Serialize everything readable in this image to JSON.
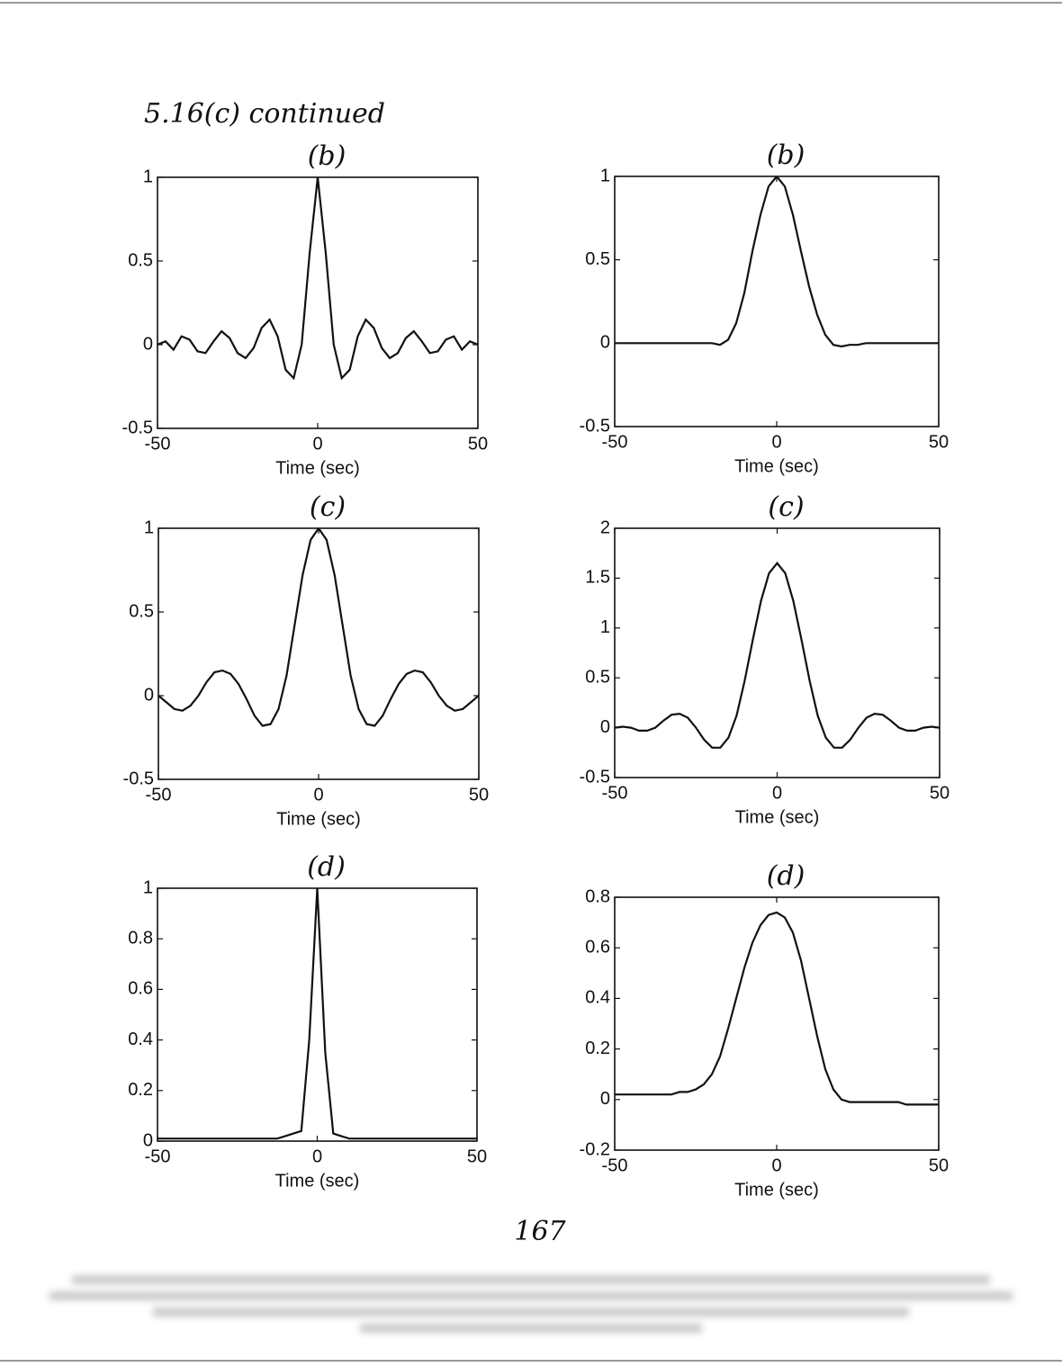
{
  "header": "5.16(c) continued",
  "page_number": "167",
  "chart_data": [
    {
      "type": "line",
      "title": "(b)",
      "xlabel": "Time (sec)",
      "color": "#111111",
      "xlim": [
        -50,
        50
      ],
      "xticks": [
        -50,
        0,
        50
      ],
      "ylim": [
        -0.5,
        1
      ],
      "yticks": [
        -0.5,
        0,
        0.5,
        1
      ],
      "x": [
        -50,
        -47.5,
        -45,
        -42.5,
        -40,
        -37.5,
        -35,
        -32.5,
        -30,
        -27.5,
        -25,
        -22.5,
        -20,
        -17.5,
        -15,
        -12.5,
        -10,
        -7.5,
        -5,
        -2.5,
        0,
        2.5,
        5,
        7.5,
        10,
        12.5,
        15,
        17.5,
        20,
        22.5,
        25,
        27.5,
        30,
        32.5,
        35,
        37.5,
        40,
        42.5,
        45,
        47.5,
        50
      ],
      "y": [
        0,
        0.02,
        -0.03,
        0.05,
        0.03,
        -0.04,
        -0.05,
        0.02,
        0.08,
        0.04,
        -0.05,
        -0.08,
        -0.02,
        0.1,
        0.15,
        0.05,
        -0.15,
        -0.2,
        0,
        0.55,
        1,
        0.55,
        0,
        -0.2,
        -0.15,
        0.05,
        0.15,
        0.1,
        -0.02,
        -0.08,
        -0.05,
        0.04,
        0.08,
        0.02,
        -0.05,
        -0.04,
        0.03,
        0.05,
        -0.03,
        0.02,
        0
      ]
    },
    {
      "type": "line",
      "title": "(b)",
      "xlabel": "Time (sec)",
      "color": "#111111",
      "xlim": [
        -50,
        50
      ],
      "xticks": [
        -50,
        0,
        50
      ],
      "ylim": [
        -0.5,
        1
      ],
      "yticks": [
        -0.5,
        0,
        0.5,
        1
      ],
      "x": [
        -50,
        -47.5,
        -45,
        -42.5,
        -40,
        -37.5,
        -35,
        -32.5,
        -30,
        -27.5,
        -25,
        -22.5,
        -20,
        -17.5,
        -15,
        -12.5,
        -10,
        -7.5,
        -5,
        -2.5,
        0,
        2.5,
        5,
        7.5,
        10,
        12.5,
        15,
        17.5,
        20,
        22.5,
        25,
        27.5,
        30,
        32.5,
        35,
        37.5,
        40,
        42.5,
        45,
        47.5,
        50
      ],
      "y": [
        0,
        0,
        0,
        0,
        0,
        0,
        0,
        0,
        0,
        0,
        0,
        0,
        0,
        -0.01,
        0.02,
        0.12,
        0.3,
        0.55,
        0.77,
        0.94,
        1,
        0.94,
        0.77,
        0.55,
        0.34,
        0.17,
        0.05,
        -0.01,
        -0.02,
        -0.01,
        -0.01,
        0,
        0,
        0,
        0,
        0,
        0,
        0,
        0,
        0,
        0
      ]
    },
    {
      "type": "line",
      "title": "(c)",
      "xlabel": "Time (sec)",
      "color": "#111111",
      "xlim": [
        -50,
        50
      ],
      "xticks": [
        -50,
        0,
        50
      ],
      "ylim": [
        -0.5,
        1
      ],
      "yticks": [
        -0.5,
        0,
        0.5,
        1
      ],
      "x": [
        -50,
        -47.5,
        -45,
        -42.5,
        -40,
        -37.5,
        -35,
        -32.5,
        -30,
        -27.5,
        -25,
        -22.5,
        -20,
        -17.5,
        -15,
        -12.5,
        -10,
        -7.5,
        -5,
        -2.5,
        0,
        2.5,
        5,
        7.5,
        10,
        12.5,
        15,
        17.5,
        20,
        22.5,
        25,
        27.5,
        30,
        32.5,
        35,
        37.5,
        40,
        42.5,
        45,
        47.5,
        50
      ],
      "y": [
        0,
        -0.04,
        -0.08,
        -0.09,
        -0.06,
        0,
        0.08,
        0.14,
        0.15,
        0.13,
        0.07,
        -0.02,
        -0.12,
        -0.18,
        -0.17,
        -0.08,
        0.12,
        0.42,
        0.72,
        0.93,
        1,
        0.93,
        0.72,
        0.42,
        0.12,
        -0.08,
        -0.17,
        -0.18,
        -0.12,
        -0.02,
        0.07,
        0.13,
        0.15,
        0.14,
        0.08,
        0,
        -0.06,
        -0.09,
        -0.08,
        -0.04,
        0
      ]
    },
    {
      "type": "line",
      "title": "(c)",
      "xlabel": "Time (sec)",
      "color": "#111111",
      "xlim": [
        -50,
        50
      ],
      "xticks": [
        -50,
        0,
        50
      ],
      "ylim": [
        -0.5,
        2
      ],
      "yticks": [
        -0.5,
        0,
        0.5,
        1,
        1.5,
        2
      ],
      "x": [
        -50,
        -47.5,
        -45,
        -42.5,
        -40,
        -37.5,
        -35,
        -32.5,
        -30,
        -27.5,
        -25,
        -22.5,
        -20,
        -17.5,
        -15,
        -12.5,
        -10,
        -7.5,
        -5,
        -2.5,
        0,
        2.5,
        5,
        7.5,
        10,
        12.5,
        15,
        17.5,
        20,
        22.5,
        25,
        27.5,
        30,
        32.5,
        35,
        37.5,
        40,
        42.5,
        45,
        47.5,
        50
      ],
      "y": [
        0,
        0.01,
        0,
        -0.03,
        -0.03,
        0,
        0.07,
        0.13,
        0.14,
        0.1,
        0,
        -0.12,
        -0.2,
        -0.2,
        -0.1,
        0.12,
        0.47,
        0.88,
        1.27,
        1.55,
        1.65,
        1.55,
        1.27,
        0.88,
        0.47,
        0.12,
        -0.1,
        -0.2,
        -0.2,
        -0.12,
        0,
        0.1,
        0.14,
        0.13,
        0.07,
        0,
        -0.03,
        -0.03,
        0,
        0.01,
        0
      ]
    },
    {
      "type": "line",
      "title": "(d)",
      "xlabel": "Time (sec)",
      "color": "#111111",
      "xlim": [
        -50,
        50
      ],
      "xticks": [
        -50,
        0,
        50
      ],
      "ylim": [
        0,
        1
      ],
      "yticks": [
        0,
        0.2,
        0.4,
        0.6,
        0.8,
        1
      ],
      "x": [
        -50,
        -47.5,
        -45,
        -42.5,
        -40,
        -37.5,
        -35,
        -32.5,
        -30,
        -27.5,
        -25,
        -22.5,
        -20,
        -17.5,
        -15,
        -12.5,
        -10,
        -7.5,
        -5,
        -2.5,
        0,
        2.5,
        5,
        7.5,
        10,
        12.5,
        15,
        17.5,
        20,
        22.5,
        25,
        27.5,
        30,
        32.5,
        35,
        37.5,
        40,
        42.5,
        45,
        47.5,
        50
      ],
      "y": [
        0.01,
        0.01,
        0.01,
        0.01,
        0.01,
        0.01,
        0.01,
        0.01,
        0.01,
        0.01,
        0.01,
        0.01,
        0.01,
        0.01,
        0.01,
        0.01,
        0.02,
        0.03,
        0.04,
        0.4,
        1,
        0.35,
        0.03,
        0.02,
        0.01,
        0.01,
        0.01,
        0.01,
        0.01,
        0.01,
        0.01,
        0.01,
        0.01,
        0.01,
        0.01,
        0.01,
        0.01,
        0.01,
        0.01,
        0.01,
        0.01
      ]
    },
    {
      "type": "line",
      "title": "(d)",
      "xlabel": "Time (sec)",
      "color": "#111111",
      "xlim": [
        -50,
        50
      ],
      "xticks": [
        -50,
        0,
        50
      ],
      "ylim": [
        -0.2,
        0.8
      ],
      "yticks": [
        -0.2,
        0,
        0.2,
        0.4,
        0.6,
        0.8
      ],
      "x": [
        -50,
        -47.5,
        -45,
        -42.5,
        -40,
        -37.5,
        -35,
        -32.5,
        -30,
        -27.5,
        -25,
        -22.5,
        -20,
        -17.5,
        -15,
        -12.5,
        -10,
        -7.5,
        -5,
        -2.5,
        0,
        2.5,
        5,
        7.5,
        10,
        12.5,
        15,
        17.5,
        20,
        22.5,
        25,
        27.5,
        30,
        32.5,
        35,
        37.5,
        40,
        42.5,
        45,
        47.5,
        50
      ],
      "y": [
        0.02,
        0.02,
        0.02,
        0.02,
        0.02,
        0.02,
        0.02,
        0.02,
        0.03,
        0.03,
        0.04,
        0.06,
        0.1,
        0.17,
        0.28,
        0.4,
        0.52,
        0.62,
        0.69,
        0.73,
        0.74,
        0.72,
        0.66,
        0.55,
        0.4,
        0.25,
        0.12,
        0.04,
        0,
        -0.01,
        -0.01,
        -0.01,
        -0.01,
        -0.01,
        -0.01,
        -0.01,
        -0.02,
        -0.02,
        -0.02,
        -0.02,
        -0.02
      ]
    }
  ]
}
